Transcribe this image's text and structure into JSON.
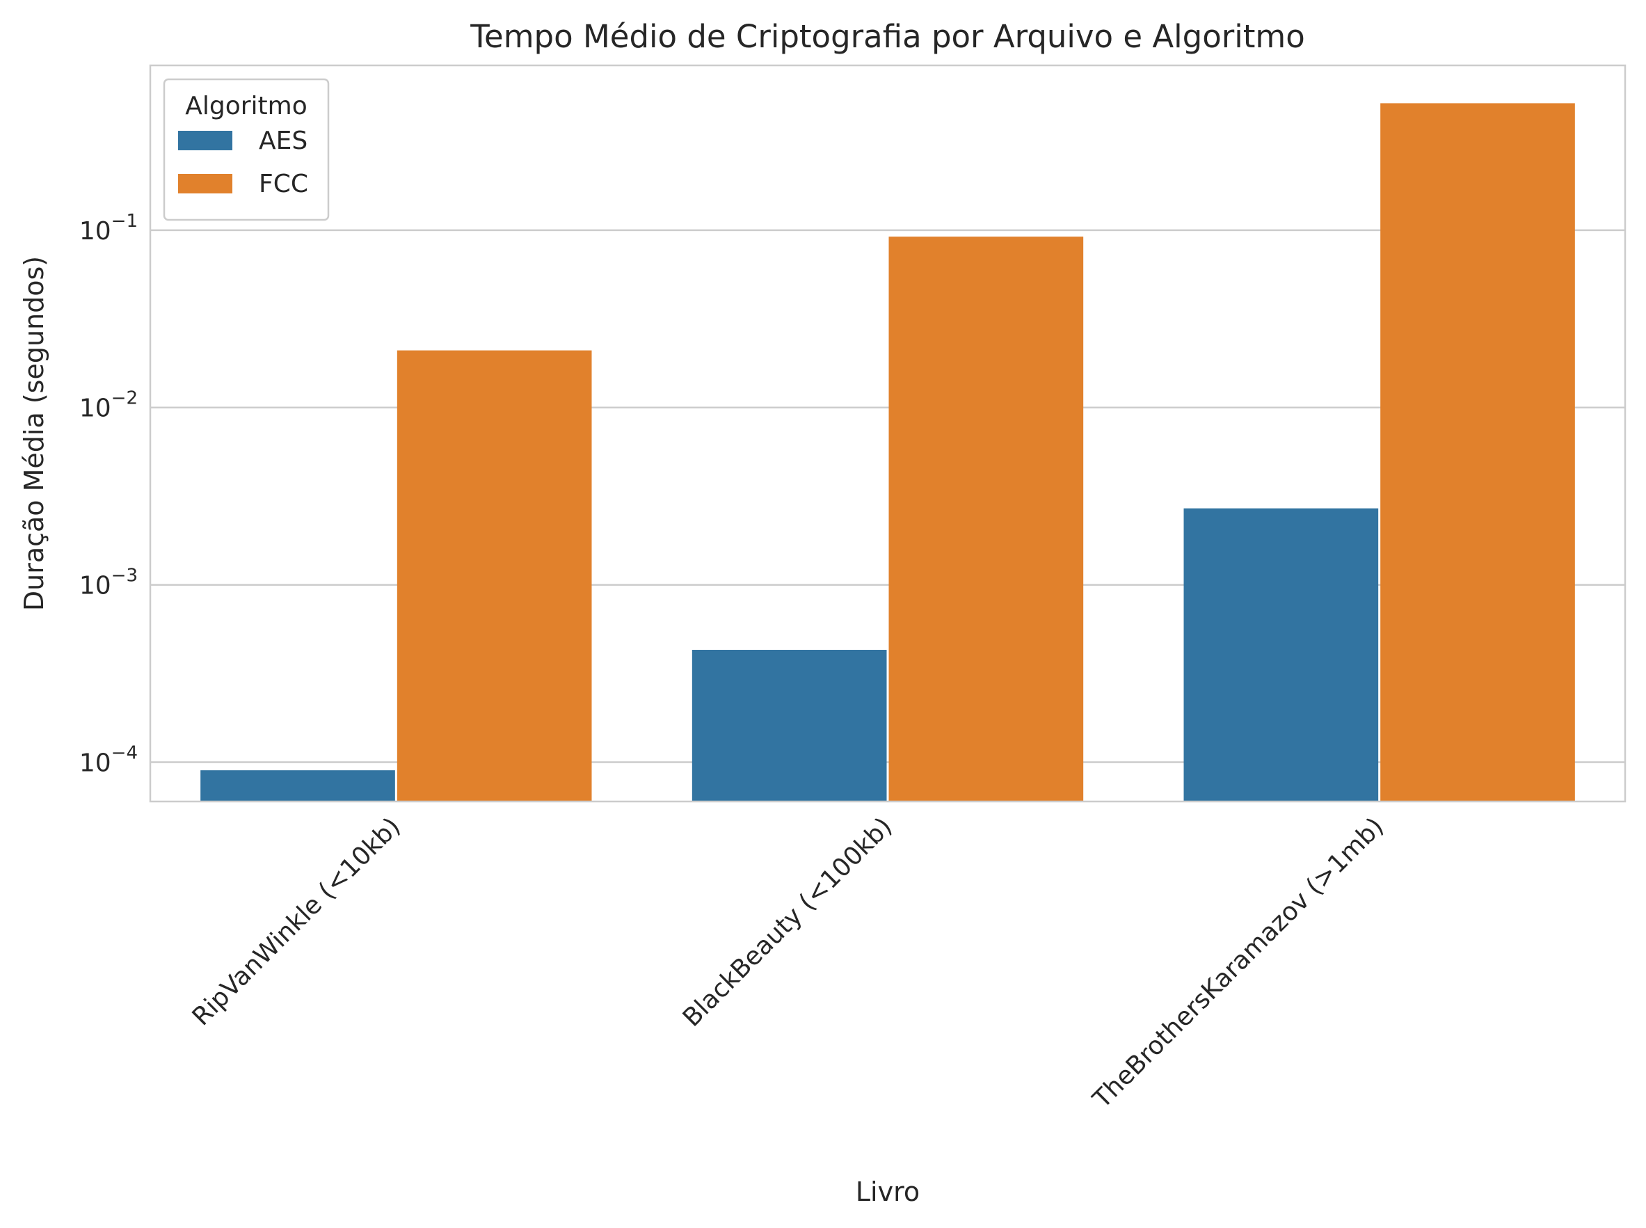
{
  "chart_data": {
    "type": "bar",
    "title": "Tempo Médio de Criptografia por Arquivo e Algoritmo",
    "xlabel": "Livro",
    "ylabel": "Duração Média (segundos)",
    "yscale": "log",
    "ylim": [
      6e-05,
      0.85
    ],
    "grid": "horizontal",
    "legend": {
      "title": "Algoritmo",
      "placement": "top-left"
    },
    "categories": [
      "RipVanWinkle (<10kb)",
      "BlackBeauty (<100kb)",
      "TheBrothersKaramazov (>1mb)"
    ],
    "series": [
      {
        "name": "AES",
        "color": "#3274a1",
        "values": [
          9e-05,
          0.00043,
          0.0027
        ]
      },
      {
        "name": "FCC",
        "color": "#e1812c",
        "values": [
          0.021,
          0.092,
          0.52
        ]
      }
    ],
    "yticks": [
      {
        "value": 0.0001,
        "base": "10",
        "exp": "−4"
      },
      {
        "value": 0.001,
        "base": "10",
        "exp": "−3"
      },
      {
        "value": 0.01,
        "base": "10",
        "exp": "−2"
      },
      {
        "value": 0.1,
        "base": "10",
        "exp": "−1"
      }
    ]
  }
}
